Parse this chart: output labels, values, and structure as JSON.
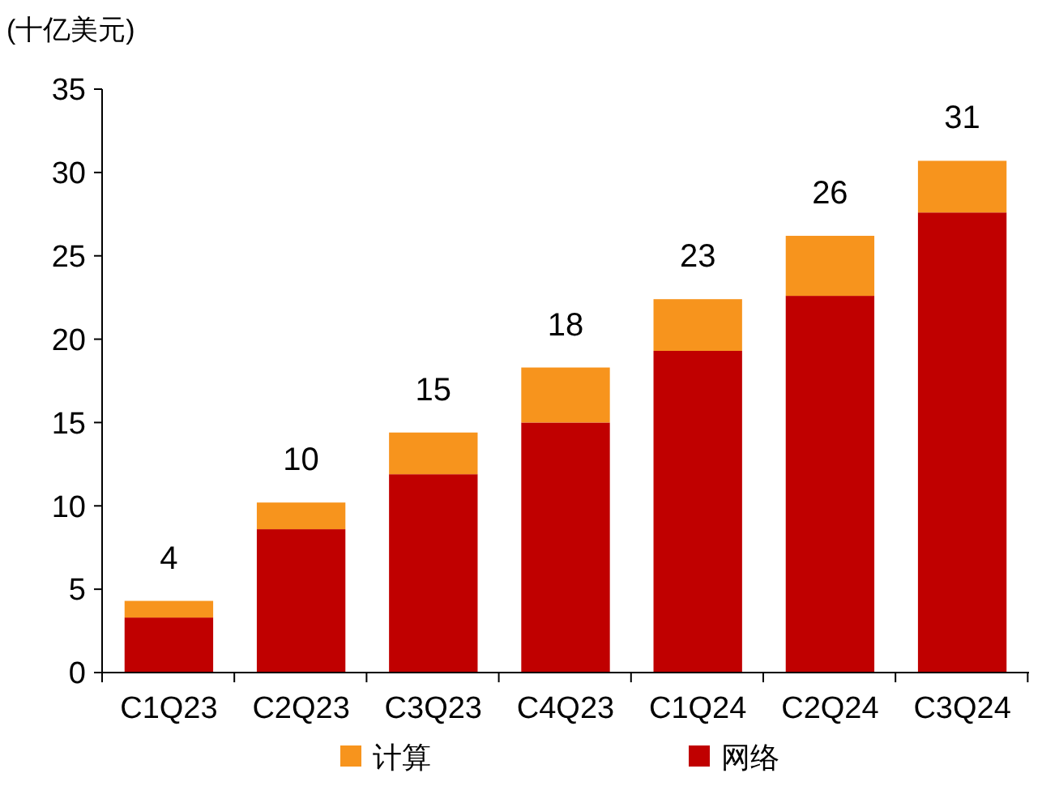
{
  "chart_data": {
    "type": "bar",
    "ylabel": "(十亿美元)",
    "categories": [
      "C1Q23",
      "C2Q23",
      "C3Q23",
      "C4Q23",
      "C1Q24",
      "C2Q24",
      "C3Q24"
    ],
    "stacked": true,
    "series": [
      {
        "name": "网络",
        "color": "#c00000",
        "values": [
          3.3,
          8.6,
          11.9,
          15.0,
          19.3,
          22.6,
          27.6
        ]
      },
      {
        "name": "计算",
        "color": "#f7941d",
        "values": [
          1.0,
          1.6,
          2.5,
          3.3,
          3.1,
          3.6,
          3.1
        ]
      }
    ],
    "totals": [
      "4",
      "10",
      "15",
      "18",
      "23",
      "26",
      "31"
    ],
    "ylim": [
      0,
      35
    ],
    "yticks": [
      0,
      5,
      10,
      15,
      20,
      25,
      30,
      35
    ],
    "grid": false,
    "legend": "bottom"
  }
}
